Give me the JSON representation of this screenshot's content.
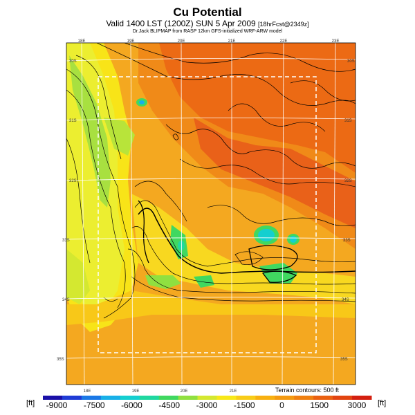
{
  "title": "Cu Potential",
  "subtitle_main": "Valid 1400 LST (1200Z) SUN 5 Apr 2009 ",
  "subtitle_tag": "[18hrFcst@2349z]",
  "credit": "Dr.Jack BLIPMAP from RASP 12km GFS-initialized WRF-ARW model",
  "longitude_labels_top": [
    "18E",
    "19E",
    "20E",
    "21E",
    "22E",
    "23E"
  ],
  "longitude_labels_bottom": [
    "18E",
    "19E",
    "20E",
    "21E"
  ],
  "latitude_labels_left": [
    "30S",
    "31S",
    "32S",
    "33S",
    "34S",
    "35S"
  ],
  "latitude_labels_right": [
    "30S",
    "31S",
    "32S",
    "33S",
    "34S",
    "35S"
  ],
  "terrain_note": "Terrain contours: 500 ft",
  "colorbar": {
    "unit_left": "[ft]",
    "unit_right": "[ft]",
    "tick_labels": [
      "-9000",
      "-7500",
      "-6000",
      "-4500",
      "-3000",
      "-1500",
      "0",
      "1500",
      "3000"
    ],
    "colors": [
      "#1a10a8",
      "#1f3cd6",
      "#1a78e6",
      "#18b0e8",
      "#14cfd0",
      "#20d8a0",
      "#40d860",
      "#90e040",
      "#d4e830",
      "#f8e818",
      "#f8cc18",
      "#f8b010",
      "#f49a10",
      "#f08010",
      "#ea6010",
      "#e24410",
      "#d42010"
    ]
  }
}
